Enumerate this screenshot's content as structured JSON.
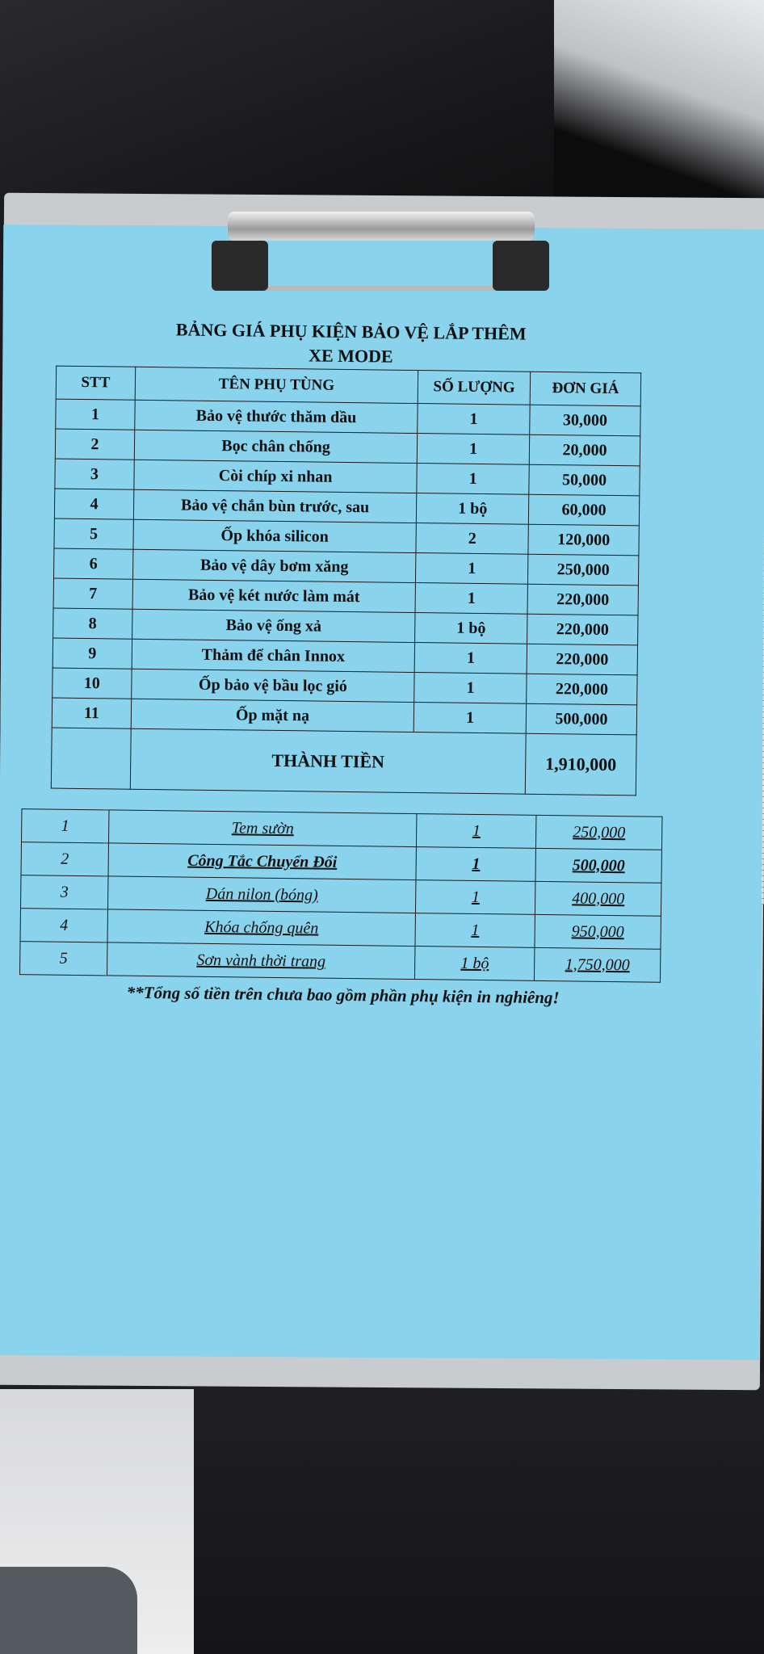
{
  "document": {
    "title_line1": "BẢNG GIÁ PHỤ KIỆN BẢO VỆ LẮP THÊM",
    "title_line2": "XE  MODE",
    "headers": [
      "STT",
      "TÊN PHỤ TÙNG",
      "SỐ LƯỢNG",
      "ĐƠN GIÁ"
    ],
    "rows": [
      {
        "stt": "1",
        "name": "Bảo vệ thước thăm dầu",
        "qty": "1",
        "price": "30,000"
      },
      {
        "stt": "2",
        "name": "Bọc chân chống",
        "qty": "1",
        "price": "20,000"
      },
      {
        "stt": "3",
        "name": "Còi chíp xi nhan",
        "qty": "1",
        "price": "50,000"
      },
      {
        "stt": "4",
        "name": "Bảo vệ chắn bùn trước, sau",
        "qty": "1 bộ",
        "price": "60,000"
      },
      {
        "stt": "5",
        "name": "Ốp khóa silicon",
        "qty": "2",
        "price": "120,000"
      },
      {
        "stt": "6",
        "name": "Bảo vệ dây bơm xăng",
        "qty": "1",
        "price": "250,000"
      },
      {
        "stt": "7",
        "name": "Bảo vệ két nước làm mát",
        "qty": "1",
        "price": "220,000"
      },
      {
        "stt": "8",
        "name": "Bảo vệ ống xả",
        "qty": "1 bộ",
        "price": "220,000"
      },
      {
        "stt": "9",
        "name": "Thảm để chân Innox",
        "qty": "1",
        "price": "220,000"
      },
      {
        "stt": "10",
        "name": "Ốp bảo vệ bầu lọc gió",
        "qty": "1",
        "price": "220,000"
      },
      {
        "stt": "11",
        "name": "Ốp mặt nạ",
        "qty": "1",
        "price": "500,000"
      }
    ],
    "total_label": "THÀNH TIỀN",
    "total_value": "1,910,000",
    "extras": [
      {
        "stt": "1",
        "name": "Tem sườn",
        "qty": "1",
        "price": "250,000"
      },
      {
        "stt": "2",
        "name": "Công Tắc Chuyển Đổi",
        "qty": "1",
        "price": "500,000"
      },
      {
        "stt": "3",
        "name": "Dán nilon (bóng)",
        "qty": "1",
        "price": "400,000"
      },
      {
        "stt": "4",
        "name": "Khóa chống quên",
        "qty": "1",
        "price": "950,000"
      },
      {
        "stt": "5",
        "name": "Sơn vành thời trang",
        "qty": "1 bộ",
        "price": "1,750,000"
      }
    ],
    "footnote": "**Tổng số tiền trên chưa bao gồm phần phụ kiện in nghiêng!"
  },
  "colors": {
    "paper": "#8ad3ec",
    "board": "#c9ccce",
    "ink": "#111111"
  }
}
